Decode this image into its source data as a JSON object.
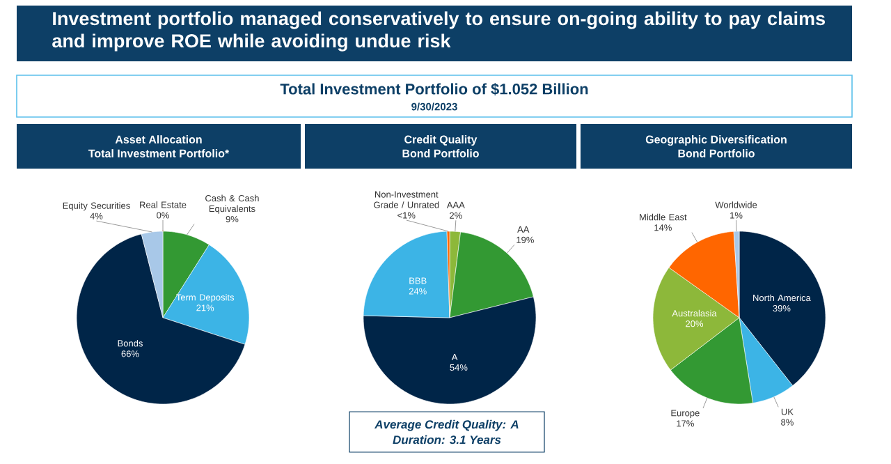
{
  "chart_data": [
    {
      "type": "pie",
      "title": "Asset Allocation",
      "subtitle": "Total Investment Portfolio*",
      "categories": [
        "Real Estate",
        "Cash & Cash Equivalents",
        "Term Deposits",
        "Bonds",
        "Equity Securities"
      ],
      "values": [
        0,
        9,
        21,
        66,
        4
      ],
      "colors": [
        "#ff6600",
        "#339933",
        "#3cb4e6",
        "#002548",
        "#a8c8e8"
      ],
      "value_labels": [
        "0%",
        "9%",
        "21%",
        "66%",
        "4%"
      ],
      "annotations": [
        "Investment portfolio managed conservatively to ensure on-going ability to pay claims and improve ROE while avoiding undue risk",
        "Total Investment Portfolio of $1.052 Billion",
        "9/30/2023"
      ]
    },
    {
      "type": "pie",
      "title": "Credit Quality",
      "subtitle": "Bond Portfolio",
      "categories": [
        "AAA",
        "AA",
        "A",
        "BBB",
        "Non-Investment Grade / Unrated"
      ],
      "values": [
        2,
        19,
        54,
        24,
        0.5
      ],
      "colors": [
        "#8db83a",
        "#339933",
        "#002548",
        "#3cb4e6",
        "#ff6600"
      ],
      "value_labels": [
        "2%",
        "19%",
        "54%",
        "24%",
        "<1%"
      ],
      "annotations": [
        "Average Credit Quality: A",
        "Duration: 3.1 Years"
      ]
    },
    {
      "type": "pie",
      "title": "Geographic Diversification",
      "subtitle": "Bond Portfolio",
      "categories": [
        "North America",
        "UK",
        "Europe",
        "Australasia",
        "Middle East",
        "Worldwide"
      ],
      "values": [
        39,
        8,
        17,
        20,
        14,
        1
      ],
      "colors": [
        "#002548",
        "#3cb4e6",
        "#339933",
        "#8db83a",
        "#ff6600",
        "#a8c8e8"
      ],
      "value_labels": [
        "39%",
        "8%",
        "17%",
        "20%",
        "14%",
        "1%"
      ]
    }
  ]
}
